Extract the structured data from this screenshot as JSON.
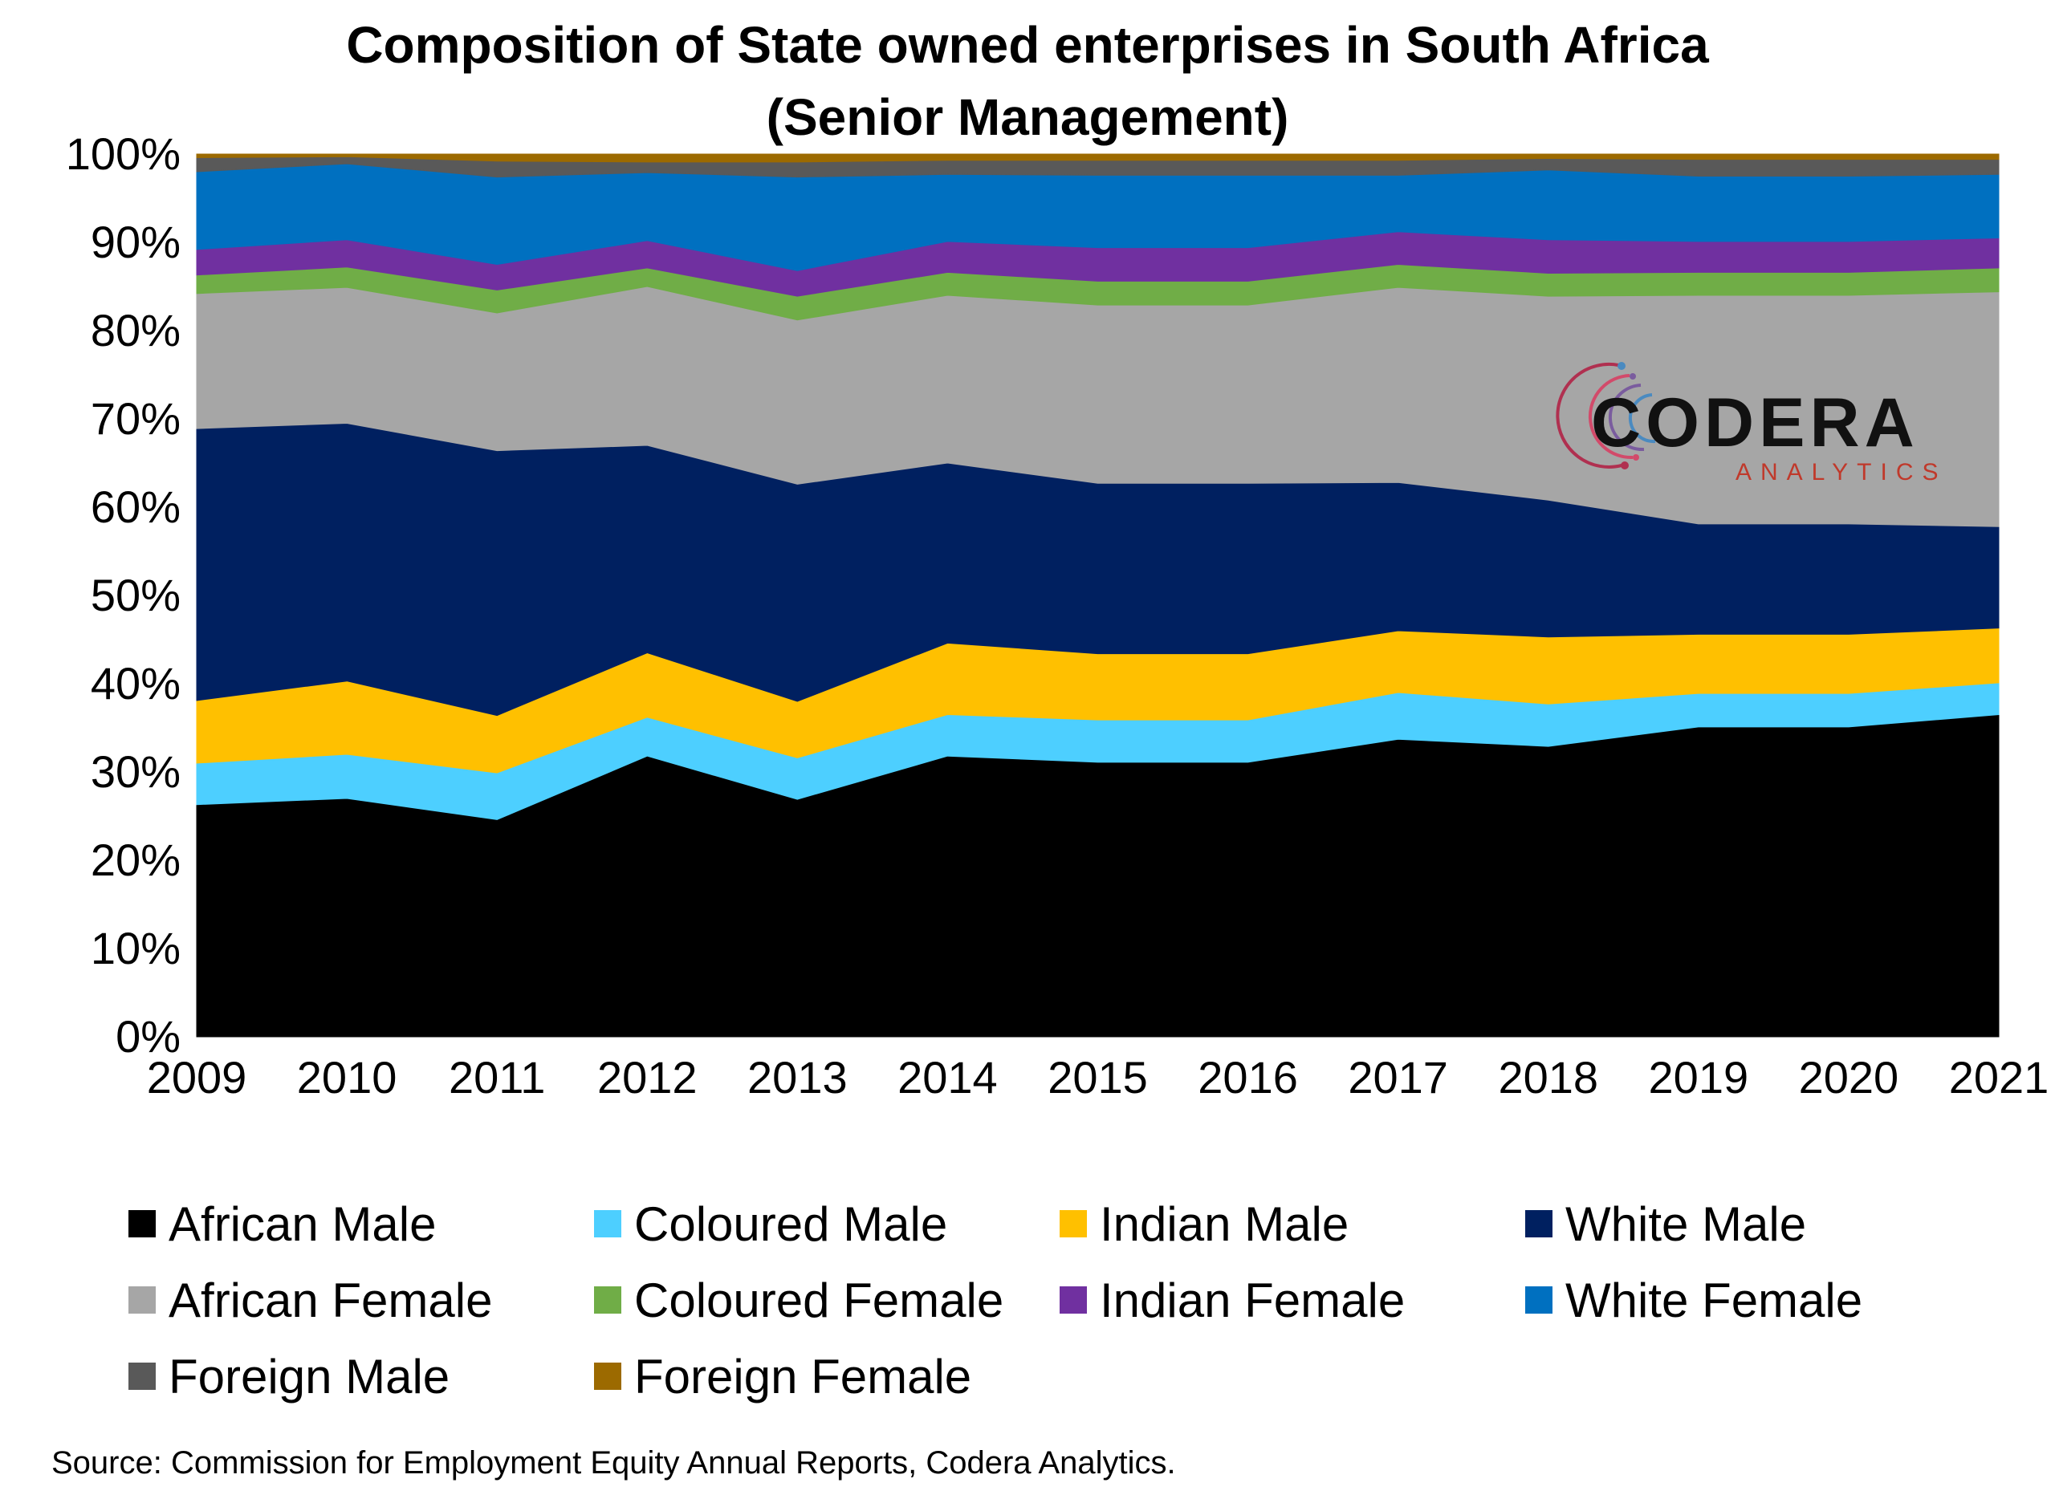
{
  "chart_data": {
    "type": "area",
    "stacked": true,
    "title": "Composition of State owned enterprises in South Africa",
    "subtitle": "(Senior Management)",
    "x": [
      "2009",
      "2010",
      "2011",
      "2012",
      "2013",
      "2014",
      "2015",
      "2016",
      "2017",
      "2018",
      "2019",
      "2020",
      "2021"
    ],
    "ylim": [
      0,
      100
    ],
    "y_ticks": [
      "0%",
      "10%",
      "20%",
      "30%",
      "40%",
      "50%",
      "60%",
      "70%",
      "80%",
      "90%",
      "100%"
    ],
    "grid": false,
    "legend_position": "bottom",
    "series": [
      {
        "name": "African Male",
        "color": "#000000",
        "values": [
          26.3,
          27.0,
          24.6,
          31.8,
          26.9,
          31.8,
          31.1,
          31.1,
          33.7,
          32.9,
          35.1,
          35.1,
          36.5
        ]
      },
      {
        "name": "Coloured Male",
        "color": "#4DCFFF",
        "values": [
          4.7,
          5.0,
          5.3,
          4.4,
          4.7,
          4.7,
          4.8,
          4.8,
          5.3,
          4.8,
          3.8,
          3.8,
          3.6
        ]
      },
      {
        "name": "Indian Male",
        "color": "#FFC000",
        "values": [
          7.1,
          8.3,
          6.5,
          7.3,
          6.4,
          8.1,
          7.5,
          7.5,
          7.0,
          7.6,
          6.7,
          6.7,
          6.2
        ]
      },
      {
        "name": "White Male",
        "color": "#002060",
        "values": [
          30.8,
          29.2,
          30.0,
          23.5,
          24.6,
          20.4,
          19.3,
          19.3,
          16.8,
          15.5,
          12.5,
          12.5,
          11.5
        ]
      },
      {
        "name": "African Female",
        "color": "#A6A6A6",
        "values": [
          15.3,
          15.4,
          15.6,
          18.0,
          18.6,
          19.0,
          20.2,
          20.2,
          22.1,
          23.1,
          25.9,
          25.9,
          26.6
        ]
      },
      {
        "name": "Coloured Female",
        "color": "#70AD47",
        "values": [
          2.1,
          2.3,
          2.6,
          2.1,
          2.7,
          2.6,
          2.7,
          2.7,
          2.6,
          2.6,
          2.6,
          2.6,
          2.7
        ]
      },
      {
        "name": "Indian Female",
        "color": "#7030A0",
        "values": [
          2.9,
          3.1,
          2.9,
          3.1,
          2.9,
          3.5,
          3.8,
          3.8,
          3.7,
          3.8,
          3.5,
          3.5,
          3.4
        ]
      },
      {
        "name": "White Female",
        "color": "#0070C0",
        "values": [
          8.8,
          8.6,
          9.9,
          7.7,
          10.6,
          7.6,
          8.2,
          8.2,
          6.4,
          7.9,
          7.4,
          7.4,
          7.2
        ]
      },
      {
        "name": "Foreign Male",
        "color": "#595959",
        "values": [
          1.6,
          0.8,
          1.8,
          1.2,
          1.7,
          1.6,
          1.7,
          1.7,
          1.7,
          1.3,
          1.9,
          1.9,
          1.7
        ]
      },
      {
        "name": "Foreign Female",
        "color": "#9C6A00",
        "values": [
          0.4,
          0.3,
          0.8,
          0.9,
          0.9,
          0.7,
          0.7,
          0.7,
          0.7,
          0.5,
          0.6,
          0.6,
          0.6
        ]
      }
    ]
  },
  "source": "Source: Commission for Employment Equity Annual Reports, Codera Analytics.",
  "logo": {
    "name": "CODERA",
    "sub": "ANALYTICS"
  }
}
